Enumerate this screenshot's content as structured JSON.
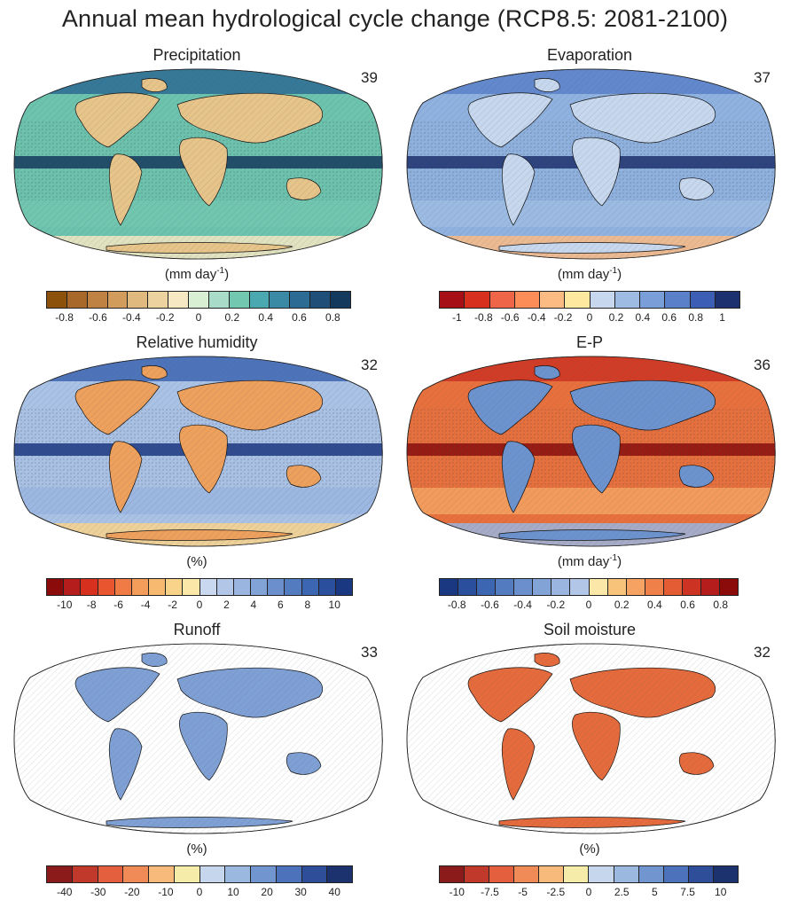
{
  "title": "Annual mean hydrological cycle change (RCP8.5: 2081-2100)",
  "panels": [
    {
      "title": "Precipitation",
      "count": "39",
      "unit_main": "(mm day",
      "unit_sup": "-1",
      "unit_end": ")",
      "colors": [
        "#8c510a",
        "#a8682a",
        "#c08242",
        "#d19c5c",
        "#e0b97e",
        "#ecd29f",
        "#f6e8c3",
        "#d9efd3",
        "#a8dcc8",
        "#72c7b0",
        "#4aa9b0",
        "#3a8aa6",
        "#2c6b93",
        "#1f4f79",
        "#133a5e"
      ],
      "ticks": [
        "-0.8",
        "-0.6",
        "-0.4",
        "-0.2",
        "0",
        "0.2",
        "0.4",
        "0.6",
        "0.8"
      ],
      "ocean": "#6cc3ae",
      "land": "#e6c48a"
    },
    {
      "title": "Evaporation",
      "count": "37",
      "unit_main": "(mm day",
      "unit_sup": "-1",
      "unit_end": ")",
      "colors": [
        "#a50f15",
        "#d7301f",
        "#ef6548",
        "#fc8d59",
        "#fdbb84",
        "#fee8a0",
        "#c6d7ee",
        "#9ebce3",
        "#7a9fd8",
        "#5a80c9",
        "#3c5fb5",
        "#1c2f6e"
      ],
      "ticks": [
        "-1",
        "-0.8",
        "-0.6",
        "-0.4",
        "-0.2",
        "0",
        "0.2",
        "0.4",
        "0.6",
        "0.8",
        "1"
      ],
      "ocean": "#8fb2e0",
      "land": "#c6d7ee"
    },
    {
      "title": "Relative humidity",
      "count": "32",
      "unit_main": "(%)",
      "unit_sup": "",
      "unit_end": "",
      "colors": [
        "#8b0b0b",
        "#b51c1c",
        "#d7301f",
        "#e8552f",
        "#f07b45",
        "#f49c5a",
        "#f7b96f",
        "#fad38b",
        "#fbe7a8",
        "#c9d8ee",
        "#b2c7e7",
        "#9ab5df",
        "#82a3d6",
        "#6a8fcc",
        "#527bc0",
        "#3d66b2",
        "#2a4f9c",
        "#1a3782"
      ],
      "ticks": [
        "-10",
        "-8",
        "-6",
        "-4",
        "-2",
        "0",
        "2",
        "4",
        "6",
        "8",
        "10"
      ],
      "ocean": "#a9c2e6",
      "land": "#eea05d"
    },
    {
      "title": "E-P",
      "count": "36",
      "unit_main": "(mm day",
      "unit_sup": "-1",
      "unit_end": ")",
      "colors": [
        "#1a3782",
        "#2a4f9c",
        "#3d66b2",
        "#527bc0",
        "#6a8fcc",
        "#82a3d6",
        "#9ab5df",
        "#b2c7e7",
        "#fbe7a8",
        "#f7c27a",
        "#f5a262",
        "#f08049",
        "#e35c33",
        "#cd3322",
        "#b51c1c",
        "#8b0b0b"
      ],
      "ticks": [
        "-0.8",
        "-0.6",
        "-0.4",
        "-0.2",
        "0",
        "0.2",
        "0.4",
        "0.6",
        "0.8"
      ],
      "ocean": "#e8703d",
      "land": "#6d93cf"
    },
    {
      "title": "Runoff",
      "count": "33",
      "unit_main": "(%)",
      "unit_sup": "",
      "unit_end": "",
      "colors": [
        "#8b1a1a",
        "#c0392b",
        "#e35f3e",
        "#f08a57",
        "#f7ba7b",
        "#f6ecaa",
        "#c5d6ed",
        "#9ab8e0",
        "#7196cf",
        "#4b72bb",
        "#2e4e99",
        "#1c326f"
      ],
      "ticks": [
        "-40",
        "-30",
        "-20",
        "-10",
        "0",
        "10",
        "20",
        "30",
        "40"
      ],
      "ocean": "#ffffff",
      "land": "#7fa0d5"
    },
    {
      "title": "Soil moisture",
      "count": "32",
      "unit_main": "(%)",
      "unit_sup": "",
      "unit_end": "",
      "colors": [
        "#8b1a1a",
        "#c0392b",
        "#e35f3e",
        "#f08a57",
        "#f7ba7b",
        "#f6ecaa",
        "#c5d6ed",
        "#9ab8e0",
        "#7196cf",
        "#4b72bb",
        "#2e4e99",
        "#1c326f"
      ],
      "ticks": [
        "-10",
        "-7.5",
        "-5",
        "-2.5",
        "0",
        "2.5",
        "5",
        "7.5",
        "10"
      ],
      "ocean": "#ffffff",
      "land": "#e56b3d"
    }
  ]
}
